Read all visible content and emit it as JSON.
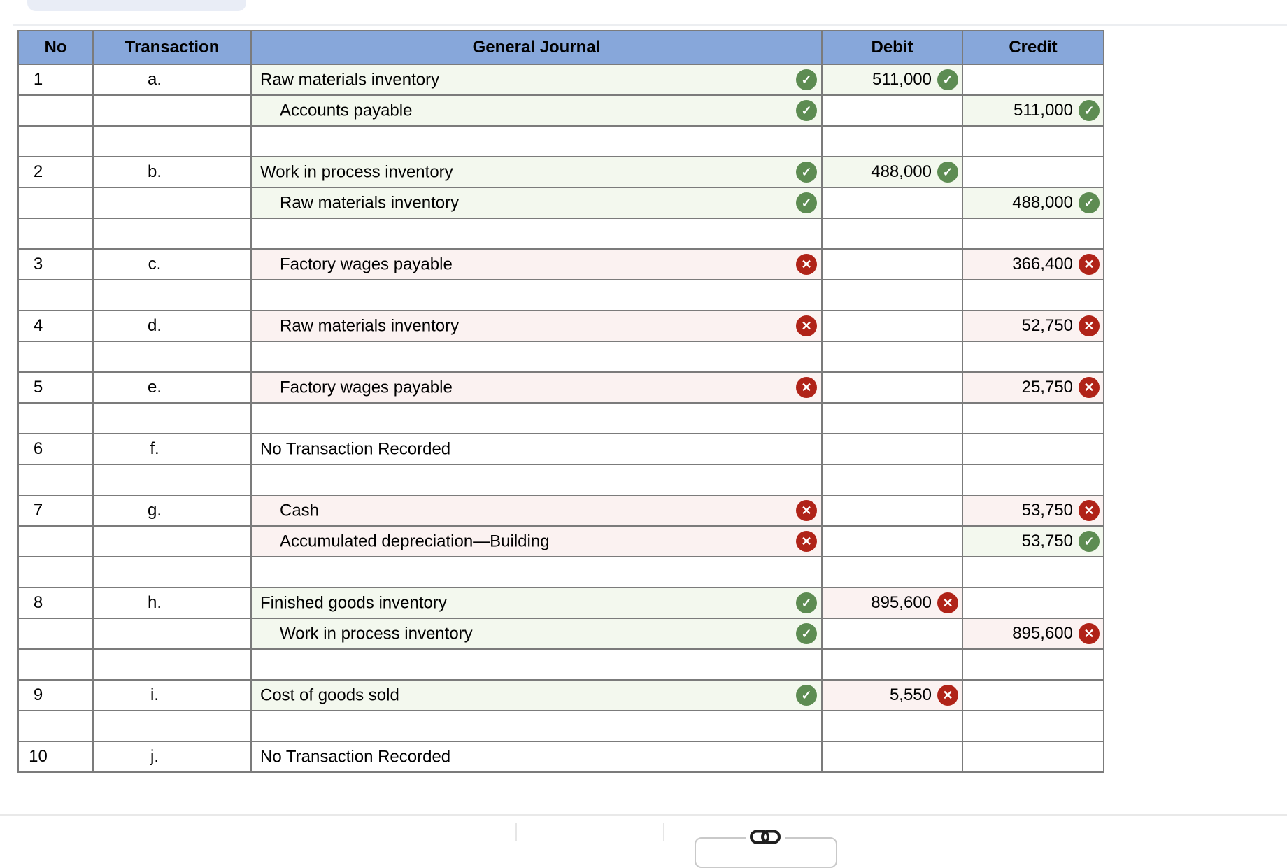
{
  "top_button": {
    "name": "previous-question-pill"
  },
  "table": {
    "headers": {
      "no": "No",
      "transaction": "Transaction",
      "journal": "General Journal",
      "debit": "Debit",
      "credit": "Credit"
    },
    "rows": [
      {
        "type": "entry",
        "no": "1",
        "tx": "a.",
        "account": "Raw materials inventory",
        "indent": false,
        "account_mark": "correct",
        "debit": "511,000",
        "debit_mark": "correct",
        "credit": "",
        "credit_mark": null
      },
      {
        "type": "entry",
        "no": "",
        "tx": "",
        "account": "Accounts payable",
        "indent": true,
        "account_mark": "correct",
        "debit": "",
        "debit_mark": null,
        "credit": "511,000",
        "credit_mark": "correct"
      },
      {
        "type": "blank"
      },
      {
        "type": "entry",
        "no": "2",
        "tx": "b.",
        "account": "Work in process inventory",
        "indent": false,
        "account_mark": "correct",
        "debit": "488,000",
        "debit_mark": "correct",
        "credit": "",
        "credit_mark": null
      },
      {
        "type": "entry",
        "no": "",
        "tx": "",
        "account": "Raw materials inventory",
        "indent": true,
        "account_mark": "correct",
        "debit": "",
        "debit_mark": null,
        "credit": "488,000",
        "credit_mark": "correct"
      },
      {
        "type": "blank"
      },
      {
        "type": "entry",
        "no": "3",
        "tx": "c.",
        "account": "Factory wages payable",
        "indent": true,
        "account_mark": "incorrect",
        "debit": "",
        "debit_mark": null,
        "credit": "366,400",
        "credit_mark": "incorrect"
      },
      {
        "type": "blank"
      },
      {
        "type": "entry",
        "no": "4",
        "tx": "d.",
        "account": "Raw materials inventory",
        "indent": true,
        "account_mark": "incorrect",
        "debit": "",
        "debit_mark": null,
        "credit": "52,750",
        "credit_mark": "incorrect"
      },
      {
        "type": "blank"
      },
      {
        "type": "entry",
        "no": "5",
        "tx": "e.",
        "account": "Factory wages payable",
        "indent": true,
        "account_mark": "incorrect",
        "debit": "",
        "debit_mark": null,
        "credit": "25,750",
        "credit_mark": "incorrect"
      },
      {
        "type": "blank"
      },
      {
        "type": "entry",
        "no": "6",
        "tx": "f.",
        "account": "No Transaction Recorded",
        "indent": false,
        "account_mark": null,
        "debit": "",
        "debit_mark": null,
        "credit": "",
        "credit_mark": null
      },
      {
        "type": "blank"
      },
      {
        "type": "entry",
        "no": "7",
        "tx": "g.",
        "account": "Cash",
        "indent": true,
        "account_mark": "incorrect",
        "debit": "",
        "debit_mark": null,
        "credit": "53,750",
        "credit_mark": "incorrect"
      },
      {
        "type": "entry",
        "no": "",
        "tx": "",
        "account": "Accumulated depreciation—Building",
        "indent": true,
        "account_mark": "incorrect",
        "debit": "",
        "debit_mark": null,
        "credit": "53,750",
        "credit_mark": "correct"
      },
      {
        "type": "blank"
      },
      {
        "type": "entry",
        "no": "8",
        "tx": "h.",
        "account": "Finished goods inventory",
        "indent": false,
        "account_mark": "correct",
        "debit": "895,600",
        "debit_mark": "incorrect",
        "credit": "",
        "credit_mark": null
      },
      {
        "type": "entry",
        "no": "",
        "tx": "",
        "account": "Work in process inventory",
        "indent": true,
        "account_mark": "correct",
        "debit": "",
        "debit_mark": null,
        "credit": "895,600",
        "credit_mark": "incorrect"
      },
      {
        "type": "blank"
      },
      {
        "type": "entry",
        "no": "9",
        "tx": "i.",
        "account": "Cost of goods sold",
        "indent": false,
        "account_mark": "correct",
        "debit": "5,550",
        "debit_mark": "incorrect",
        "credit": "",
        "credit_mark": null
      },
      {
        "type": "blank"
      },
      {
        "type": "entry",
        "no": "10",
        "tx": "j.",
        "account": "No Transaction Recorded",
        "indent": false,
        "account_mark": null,
        "debit": "",
        "debit_mark": null,
        "credit": "",
        "credit_mark": null
      }
    ]
  },
  "icons": {
    "correct": "✓",
    "incorrect": "✕",
    "link": "link-icon"
  },
  "colors": {
    "header_blue": "#87a7da",
    "correct_green": "#5d8c52",
    "incorrect_red": "#b02318",
    "tint_correct": "#f3f8ee",
    "tint_incorrect": "#fbf2f1"
  }
}
